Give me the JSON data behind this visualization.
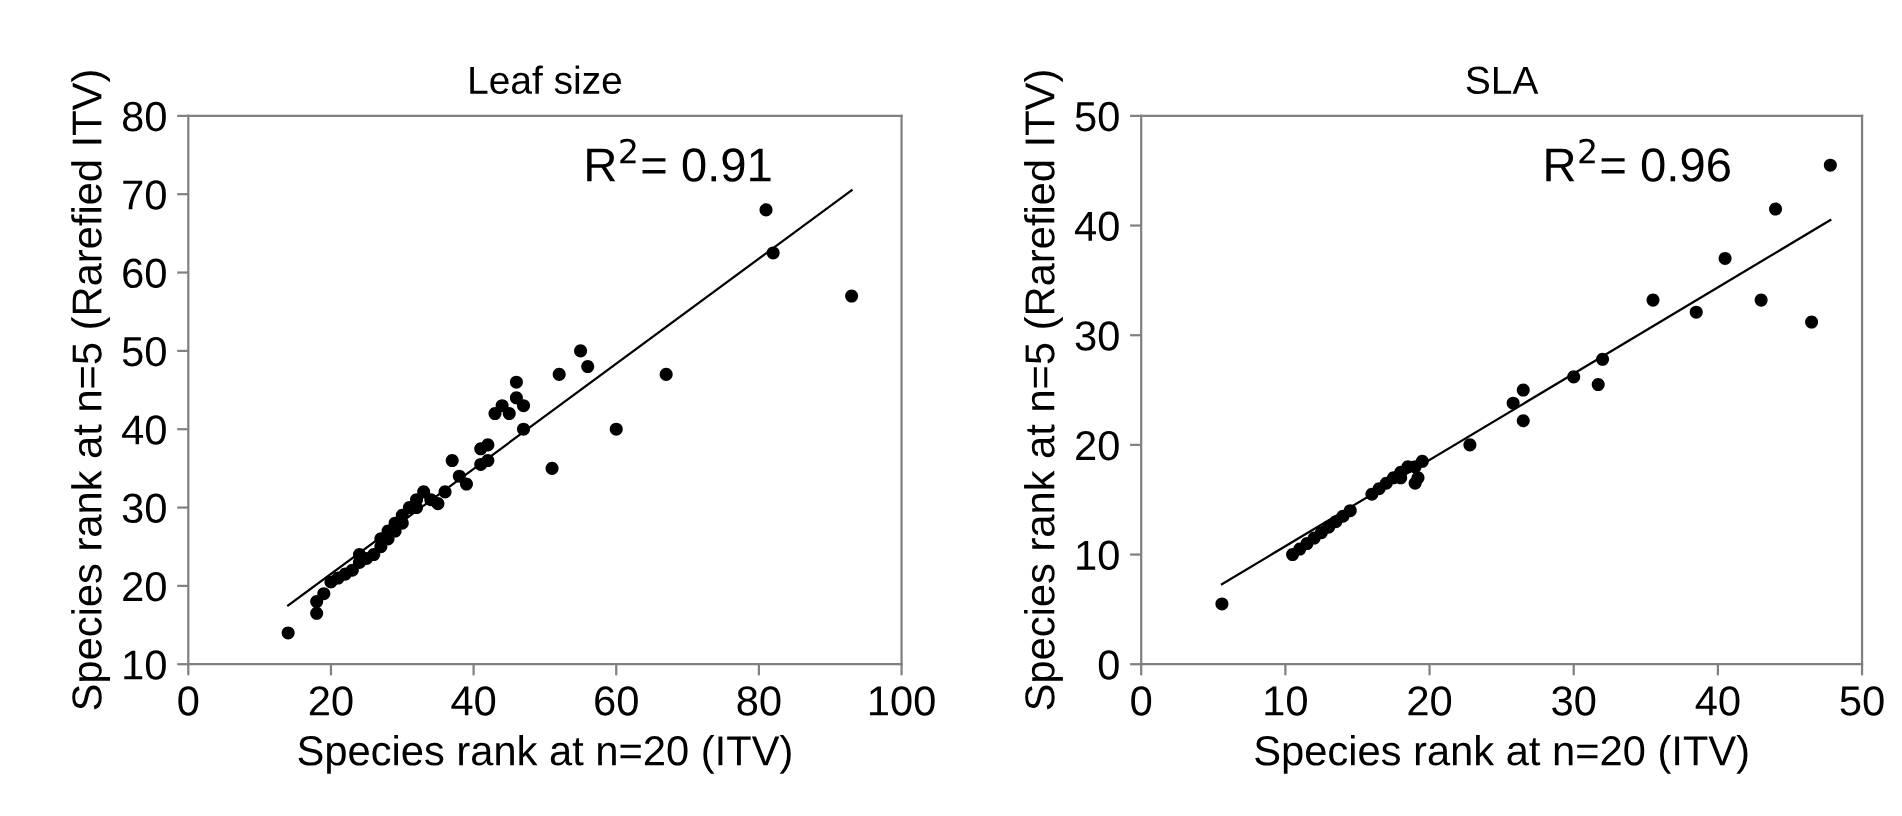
{
  "chart_data": [
    {
      "type": "scatter",
      "title": "Leaf size",
      "xlabel": "Species rank at n=20 (ITV)",
      "ylabel": "Species rank at n=5 (Rarefied ITV)",
      "annotations": [
        "R$^{2}$= 0.91"
      ],
      "xlim": [
        0,
        100
      ],
      "xticks": [
        0,
        20,
        40,
        60,
        80,
        100
      ],
      "ylim": [
        10,
        80
      ],
      "yticks": [
        10,
        20,
        30,
        40,
        50,
        60,
        70,
        80
      ],
      "grid": false,
      "legend": false,
      "series": [
        {
          "marker": "circle",
          "color": "#000000",
          "x": [
            14,
            18,
            18,
            19,
            20,
            21,
            22,
            23,
            24,
            24,
            25,
            26,
            27,
            27,
            28,
            28,
            29,
            29,
            30,
            30,
            31,
            32,
            32,
            33,
            34,
            35,
            36,
            37,
            38,
            39,
            41,
            41,
            42,
            42,
            43,
            44,
            45,
            46,
            46,
            47,
            47,
            51,
            52,
            55,
            56,
            60,
            67,
            81,
            82,
            93
          ],
          "values": [
            14,
            16.5,
            18,
            19,
            20.5,
            21,
            21.5,
            22,
            23,
            24,
            23.5,
            24,
            25,
            26,
            26,
            27,
            27,
            28,
            28,
            29,
            30,
            30,
            31,
            32,
            31,
            30.5,
            32,
            36,
            34,
            33,
            35.5,
            37.5,
            38,
            36,
            42,
            43,
            42,
            44,
            46,
            43,
            40,
            35,
            47,
            50,
            48,
            40,
            47,
            68,
            62.5,
            57
          ]
        },
        {
          "type": "line",
          "color": "#000000",
          "x": [
            14,
            93
          ],
          "values": [
            17.5,
            70.5
          ]
        }
      ]
    },
    {
      "type": "scatter",
      "title": "SLA",
      "xlabel": "Species rank at n=20 (ITV)",
      "ylabel": "Species rank at n=5 (Rarefied ITV)",
      "annotations": [
        "R$^{2}$= 0.96"
      ],
      "xlim": [
        0,
        50
      ],
      "xticks": [
        0,
        10,
        20,
        30,
        40,
        50
      ],
      "ylim": [
        0,
        50
      ],
      "yticks": [
        0,
        10,
        20,
        30,
        40,
        50
      ],
      "grid": false,
      "legend": false,
      "series": [
        {
          "marker": "circle",
          "color": "#000000",
          "x": [
            5.6,
            10.5,
            11,
            11.5,
            12,
            12.5,
            13,
            13.5,
            14,
            14.5,
            16,
            16.5,
            17,
            17.5,
            18,
            18,
            18.5,
            19,
            19.2,
            19.5,
            19,
            22.8,
            25.8,
            26.5,
            26.5,
            30,
            31.7,
            32,
            35.5,
            38.5,
            40.5,
            43,
            44,
            46.5,
            47.8
          ],
          "values": [
            5.5,
            10,
            10.5,
            11,
            11.5,
            12,
            12.5,
            13,
            13.5,
            14,
            15.5,
            16,
            16.5,
            17,
            17,
            17.5,
            18,
            18,
            17,
            18.5,
            16.5,
            20,
            23.8,
            25,
            22.2,
            26.2,
            25.5,
            27.8,
            33.2,
            32.1,
            37,
            33.2,
            41.5,
            31.2,
            45.5
          ]
        },
        {
          "type": "line",
          "color": "#000000",
          "x": [
            5.6,
            47.8
          ],
          "values": [
            7.3,
            40.5
          ]
        }
      ]
    }
  ]
}
